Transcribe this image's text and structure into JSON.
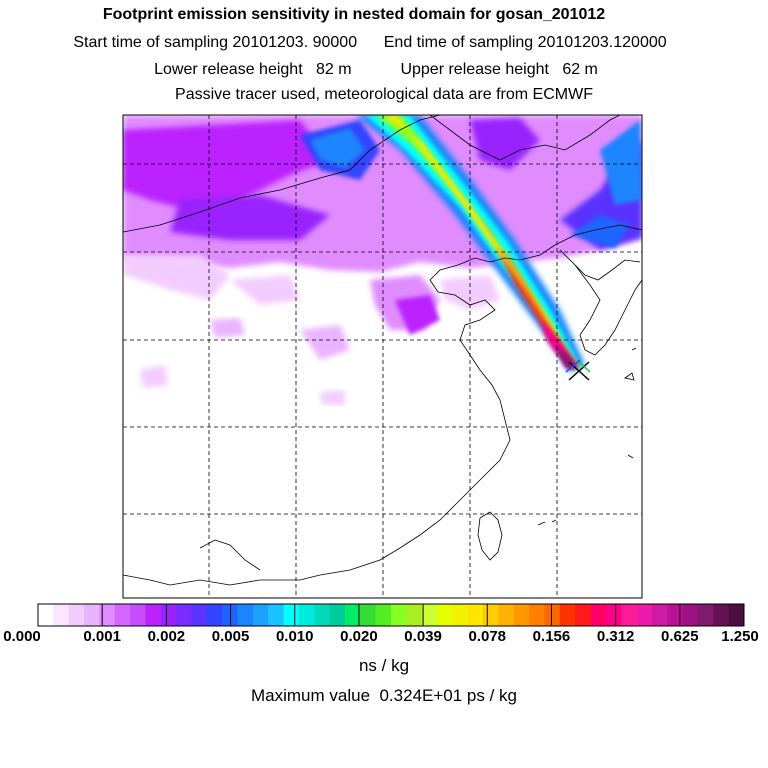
{
  "titles": {
    "main": "Footprint emission sensitivity in nested domain for gosan_201012",
    "sampling": "Start time of sampling 20101203. 90000      End time of sampling 20101203.120000",
    "release": "Lower release height   82 m           Upper release height   62 m",
    "tracer": "Passive tracer used, meteorological data are from ECMWF"
  },
  "map": {
    "receptor": "gosan",
    "receptor_marker": "x-mark"
  },
  "colorbar": {
    "labels": [
      "0.000",
      "0.001",
      "0.002",
      "0.005",
      "0.010",
      "0.020",
      "0.039",
      "0.078",
      "0.156",
      "0.312",
      "0.625",
      "1.250"
    ],
    "colors": [
      "#ffffff",
      "#fbe6ff",
      "#f3ccff",
      "#eab3ff",
      "#e08cff",
      "#d566ff",
      "#c94dff",
      "#bb22ff",
      "#9922ff",
      "#7a2bff",
      "#5a33ff",
      "#3344ff",
      "#1a66ff",
      "#1a85ff",
      "#19a3ff",
      "#1ac2ff",
      "#00ffff",
      "#00eadd",
      "#00d9bb",
      "#00cc99",
      "#00ee66",
      "#33dd33",
      "#55ee22",
      "#88ff22",
      "#aaee22",
      "#ccff33",
      "#e6ff00",
      "#f2f200",
      "#ffe600",
      "#ffcc00",
      "#ffb300",
      "#ff9900",
      "#ff8000",
      "#ff6600",
      "#ff3300",
      "#ff1a1a",
      "#ff0066",
      "#ff0088",
      "#ff1a99",
      "#ee1aaa",
      "#d11aa3",
      "#bb1199",
      "#9d1183",
      "#801a6e",
      "#661155",
      "#4d0d40"
    ],
    "unit": "ns / kg",
    "maximum": "Maximum value  0.324E+01 ps / kg"
  }
}
